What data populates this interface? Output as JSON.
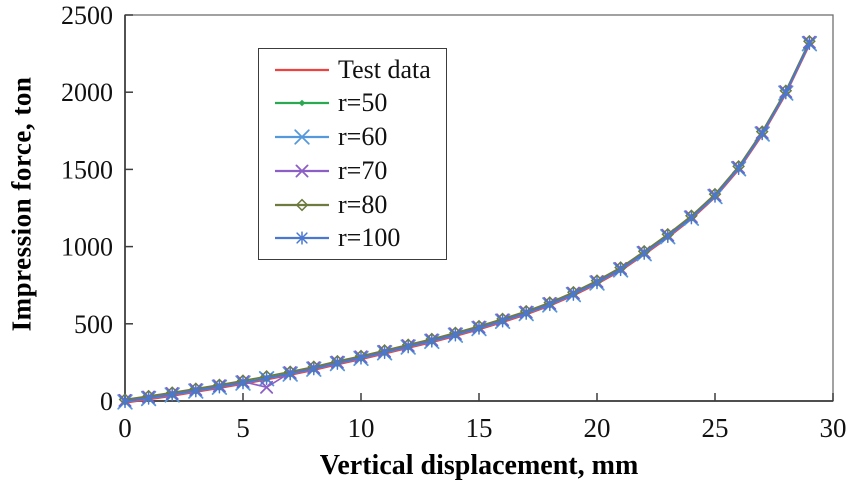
{
  "chart_data": {
    "type": "line",
    "title": "",
    "xlabel": "Vertical displacement, mm",
    "ylabel": "Impression force, ton",
    "xlim": [
      0,
      30
    ],
    "ylim": [
      0,
      2500
    ],
    "x_ticks": [
      0,
      5,
      10,
      15,
      20,
      25,
      30
    ],
    "y_ticks": [
      0,
      500,
      1000,
      1500,
      2000,
      2500
    ],
    "grid": false,
    "legend_position": "upper-left-inside",
    "x": [
      0,
      1,
      2,
      3,
      4,
      5,
      6,
      7,
      8,
      9,
      10,
      11,
      12,
      13,
      14,
      15,
      16,
      17,
      18,
      19,
      20,
      21,
      22,
      23,
      24,
      25,
      26,
      27,
      28,
      29
    ],
    "series": [
      {
        "name": "Test data",
        "color": "#ee4241",
        "marker": "none",
        "values": [
          0,
          22,
          45,
          70,
          95,
          122,
          150,
          180,
          212,
          248,
          282,
          318,
          355,
          392,
          432,
          475,
          522,
          572,
          628,
          695,
          770,
          855,
          960,
          1070,
          1190,
          1330,
          1510,
          1735,
          2000,
          2320
        ]
      },
      {
        "name": "r=50",
        "color": "#2aa952",
        "marker": "diamond-filled",
        "values": [
          0,
          22,
          45,
          70,
          95,
          122,
          150,
          180,
          212,
          248,
          282,
          318,
          355,
          392,
          432,
          475,
          522,
          572,
          628,
          695,
          770,
          855,
          960,
          1070,
          1190,
          1330,
          1510,
          1735,
          2000,
          2320
        ]
      },
      {
        "name": "r=60",
        "color": "#5599dd",
        "marker": "x",
        "values": [
          0,
          22,
          45,
          70,
          95,
          122,
          150,
          180,
          212,
          248,
          282,
          318,
          355,
          392,
          432,
          475,
          522,
          572,
          628,
          695,
          770,
          855,
          960,
          1070,
          1190,
          1330,
          1510,
          1735,
          2000,
          2320
        ]
      },
      {
        "name": "r=70",
        "color": "#8b5fc6",
        "marker": "x",
        "values": [
          0,
          22,
          45,
          70,
          95,
          122,
          85,
          180,
          212,
          248,
          282,
          318,
          355,
          392,
          432,
          475,
          522,
          572,
          628,
          695,
          770,
          855,
          960,
          1070,
          1190,
          1330,
          1510,
          1735,
          2000,
          2320
        ]
      },
      {
        "name": "r=80",
        "color": "#6e7b3f",
        "marker": "diamond-open",
        "values": [
          0,
          22,
          45,
          70,
          95,
          122,
          150,
          180,
          212,
          248,
          282,
          318,
          355,
          392,
          432,
          475,
          522,
          572,
          628,
          695,
          770,
          855,
          960,
          1070,
          1190,
          1330,
          1510,
          1735,
          2000,
          2320
        ]
      },
      {
        "name": "r=100",
        "color": "#4a77cf",
        "marker": "asterisk",
        "values": [
          0,
          22,
          45,
          70,
          95,
          122,
          150,
          180,
          212,
          248,
          282,
          318,
          355,
          392,
          432,
          475,
          522,
          572,
          628,
          695,
          770,
          855,
          960,
          1070,
          1190,
          1330,
          1510,
          1735,
          2000,
          2320
        ]
      }
    ]
  }
}
